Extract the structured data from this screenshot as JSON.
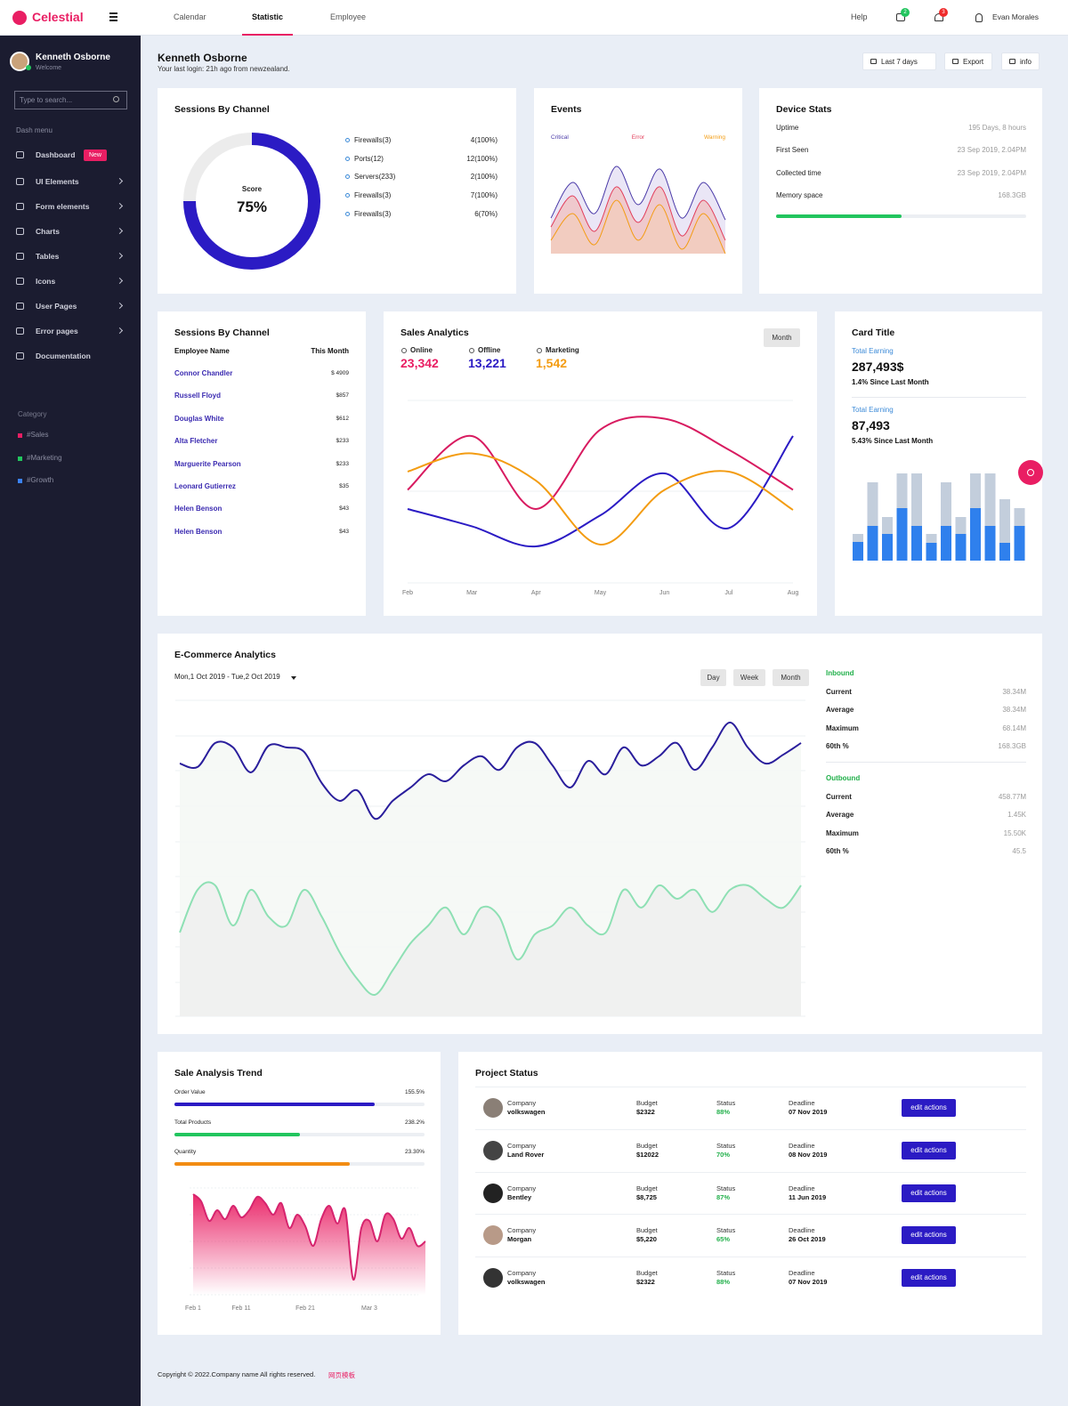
{
  "nav": {
    "brand": "Celestial",
    "tabs": [
      "Calendar",
      "Statistic",
      "Employee"
    ],
    "active_tab": "Statistic",
    "help": "Help",
    "badges": [
      "2",
      "3"
    ],
    "user": "Evan Morales"
  },
  "sidebar": {
    "user": "Kenneth Osborne",
    "subtitle": "Welcome",
    "search_placeholder": "Type to search...",
    "menu_title": "Dash menu",
    "menu": [
      {
        "label": "Dashboard",
        "badge": "New"
      },
      {
        "label": "UI Elements",
        "has_submenu": true
      },
      {
        "label": "Form elements",
        "has_submenu": true
      },
      {
        "label": "Charts",
        "has_submenu": true
      },
      {
        "label": "Tables",
        "has_submenu": true
      },
      {
        "label": "Icons",
        "has_submenu": true
      },
      {
        "label": "User Pages",
        "has_submenu": true
      },
      {
        "label": "Error pages",
        "has_submenu": true
      },
      {
        "label": "Documentation"
      }
    ],
    "category_title": "Category",
    "categories": [
      {
        "label": "#Sales",
        "color": "#e91e63"
      },
      {
        "label": "#Marketing",
        "color": "#22c55e"
      },
      {
        "label": "#Growth",
        "color": "#3b82f6"
      }
    ]
  },
  "header": {
    "name": "Kenneth Osborne",
    "last_login": "Your last login: 21h ago from newzealand.",
    "buttons": [
      "Last 7 days",
      "Export",
      "info"
    ]
  },
  "device_stats": {
    "title": "Device Stats",
    "rows": [
      {
        "label": "Uptime",
        "value": "195 Days, 8 hours"
      },
      {
        "label": "First Seen",
        "value": "23 Sep 2019, 2.04PM"
      },
      {
        "label": "Collected time",
        "value": "23 Sep 2019, 2.04PM"
      },
      {
        "label": "Memory space",
        "value": "168.3GB"
      }
    ],
    "progress": 50,
    "progress_color": "#22c55e"
  },
  "employee_table": {
    "title": "Sessions By Channel",
    "headers": [
      "Employee Name",
      "This Month"
    ],
    "rows": [
      [
        "Connor Chandler",
        "$ 4909"
      ],
      [
        "Russell Floyd",
        "$857"
      ],
      [
        "Douglas White",
        "$612"
      ],
      [
        "Alta Fletcher",
        "$233"
      ],
      [
        "Marguerite Pearson",
        "$233"
      ],
      [
        "Leonard Gutierrez",
        "$35"
      ],
      [
        "Helen Benson",
        "$43"
      ],
      [
        "Helen Benson",
        "$43"
      ]
    ]
  },
  "project_status": {
    "title": "Project Status",
    "labels": {
      "company": "Company",
      "budget": "Budget",
      "status": "Status",
      "deadline": "Deadline",
      "action": "edit actions"
    },
    "status_color": "#22b04b",
    "rows": [
      {
        "company": "volkswagen",
        "budget": "$2322",
        "status": "88%",
        "deadline": "07 Nov 2019"
      },
      {
        "company": "Land Rover",
        "budget": "$12022",
        "status": "70%",
        "deadline": "08 Nov 2019"
      },
      {
        "company": "Bentley",
        "budget": "$8,725",
        "status": "87%",
        "deadline": "11 Jun 2019"
      },
      {
        "company": "Morgan",
        "budget": "$5,220",
        "status": "65%",
        "deadline": "26 Oct 2019"
      },
      {
        "company": "volkswagen",
        "budget": "$2322",
        "status": "88%",
        "deadline": "07 Nov 2019"
      }
    ]
  },
  "footer": {
    "text": "Copyright © 2022.Company name All rights reserved.",
    "link": "网页模板"
  },
  "chart_data": [
    {
      "type": "donut",
      "title": "Sessions By Channel",
      "center_label": "Score",
      "value": 75,
      "value_label": "75%",
      "color": "#2b1bc4",
      "track_color": "#ececec",
      "ylim": [
        0,
        100
      ],
      "legend": [
        {
          "label": "Firewalls(3)",
          "value": "4(100%)"
        },
        {
          "label": "Ports(12)",
          "value": "12(100%)"
        },
        {
          "label": "Servers(233)",
          "value": "2(100%)"
        },
        {
          "label": "Firewalls(3)",
          "value": "7(100%)"
        },
        {
          "label": "Firewalls(3)",
          "value": "6(70%)"
        }
      ]
    },
    {
      "type": "area",
      "title": "Events",
      "ylim": [
        0,
        100
      ],
      "series": [
        {
          "name": "Critical",
          "color": "#4a3aa8",
          "fill": "#e6e2f4",
          "values": [
            29.6,
            59.3,
            33.3,
            72.6,
            40.7,
            70.4,
            29.6,
            59.3,
            28.1
          ]
        },
        {
          "name": "Error",
          "color": "#e23d5a",
          "fill": "#f0c3c6",
          "values": [
            22.2,
            48.1,
            18.5,
            55.6,
            25.9,
            55.6,
            14.8,
            44.4,
            11.1
          ]
        },
        {
          "name": "Warning",
          "color": "#f39c12",
          "fill": "#f2cdbd",
          "values": [
            11.1,
            33.3,
            7.4,
            44.4,
            11.1,
            40.7,
            3.7,
            33.3,
            0
          ]
        }
      ]
    },
    {
      "type": "line",
      "title": "Sales Analytics",
      "button": "Month",
      "ylim": [
        0,
        100
      ],
      "kpis": [
        {
          "label": "Online",
          "value": "23,342",
          "color": "#e91e63"
        },
        {
          "label": "Offline",
          "value": "13,221",
          "color": "#2b1bc4"
        },
        {
          "label": "Marketing",
          "value": "1,542",
          "color": "#f39c12"
        }
      ],
      "categories": [
        "Feb",
        "Mar",
        "Apr",
        "May",
        "Jun",
        "Jul",
        "Aug"
      ],
      "series": [
        {
          "color": "#d81b60",
          "values": [
            51,
            80.5,
            40.5,
            84,
            90,
            73,
            51
          ]
        },
        {
          "color": "#2b1bc4",
          "values": [
            40.5,
            31,
            20,
            37,
            60,
            30,
            80.5
          ]
        },
        {
          "color": "#f39c12",
          "values": [
            61,
            71,
            56,
            21,
            51,
            61,
            40
          ]
        }
      ]
    },
    {
      "type": "stacked_bar",
      "title": "Card Title",
      "ylim": [
        0,
        100
      ],
      "stats": [
        {
          "label": "Total Earning",
          "value": "287,493$",
          "change": "1.4% Since Last Month"
        },
        {
          "label": "Total Earning",
          "value": "87,493",
          "change": "5.43% Since Last Month"
        }
      ],
      "series": [
        {
          "color": "#2f80ed",
          "values": [
            21,
            39,
            30,
            59,
            39,
            20,
            39,
            30,
            59,
            39,
            20,
            39
          ]
        },
        {
          "color": "#c3cedc",
          "values": [
            9,
            49,
            19,
            39,
            59,
            10,
            49,
            19,
            39,
            59,
            49,
            20
          ]
        }
      ]
    },
    {
      "type": "area",
      "title": "E-Commerce Analytics",
      "date_range": "Mon,1 Oct 2019 - Tue,2 Oct 2019",
      "buttons": [
        "Day",
        "Week",
        "Month"
      ],
      "ylim": [
        0,
        100
      ],
      "panels": [
        {
          "title": "Inbound",
          "color": "#22b04b",
          "rows": [
            {
              "label": "Current",
              "value": "38.34M"
            },
            {
              "label": "Average",
              "value": "38.34M"
            },
            {
              "label": "Maximum",
              "value": "68.14M"
            },
            {
              "label": "60th %",
              "value": "168.3GB"
            }
          ]
        },
        {
          "title": "Outbound",
          "color": "#22b04b",
          "rows": [
            {
              "label": "Current",
              "value": "458.77M"
            },
            {
              "label": "Average",
              "value": "1.45K"
            },
            {
              "label": "Maximum",
              "value": "15.50K"
            },
            {
              "label": "60th %",
              "value": "45.5"
            }
          ]
        }
      ],
      "series": [
        {
          "color": "#2a1e9c",
          "fill": "#f4f8f5",
          "values": [
            80,
            78.9,
            86.5,
            85.1,
            77.2,
            85.6,
            85.1,
            83.7,
            73.8,
            68.2,
            71.5,
            62.5,
            68.2,
            72.4,
            76.6,
            74.4,
            79.4,
            82.3,
            78,
            85.1,
            86.5,
            79.4,
            72.4,
            80.8,
            76.6,
            85.1,
            79.4,
            82.3,
            86.5,
            78,
            85.1,
            93,
            85.1,
            80,
            82.8,
            86.5
          ]
        },
        {
          "color": "#8ee0b4",
          "fill": "#eef0ee",
          "values": [
            26.5,
            40,
            41.4,
            28.7,
            40,
            31.5,
            28.7,
            40,
            31.5,
            20.3,
            11.8,
            6.8,
            14.6,
            23.1,
            28.7,
            34.4,
            25.9,
            34.4,
            31.5,
            18,
            25.9,
            28.7,
            34.4,
            28.7,
            26.5,
            40,
            34.4,
            41.4,
            37.2,
            40,
            33,
            40,
            41.4,
            37.2,
            34.4,
            41.4
          ]
        }
      ]
    },
    {
      "type": "area",
      "title": "Sale Analysis Trend",
      "gradient": true,
      "ylim": [
        0,
        100
      ],
      "progress": [
        {
          "label": "Order Value",
          "text": "155.5%",
          "progress": 80,
          "color": "#2b1bc4"
        },
        {
          "label": "Total Products",
          "text": "238.2%",
          "progress": 50,
          "color": "#22c55e"
        },
        {
          "label": "Quantity",
          "text": "23.30%",
          "progress": 70,
          "color": "#f28c13"
        }
      ],
      "categories": [
        "Feb 1",
        null,
        null,
        null,
        null,
        null,
        "Feb 11",
        null,
        null,
        null,
        null,
        null,
        null,
        null,
        "Feb 21",
        null,
        null,
        null,
        null,
        null,
        null,
        null,
        "Mar 3",
        null,
        null,
        null,
        null,
        null,
        null,
        null
      ],
      "series": [
        {
          "color": "#d6246e",
          "fill": "#e91e63",
          "values": [
            94.2,
            87.5,
            69.2,
            79.2,
            70.8,
            83.3,
            72.5,
            79.2,
            91.7,
            85.8,
            75,
            85.8,
            62.5,
            75,
            64.2,
            45.8,
            70.8,
            83.3,
            66.7,
            79.2,
            14.2,
            62.5,
            69.2,
            50,
            75,
            70.8,
            52.5,
            62.5,
            45.8,
            50
          ]
        }
      ]
    }
  ]
}
